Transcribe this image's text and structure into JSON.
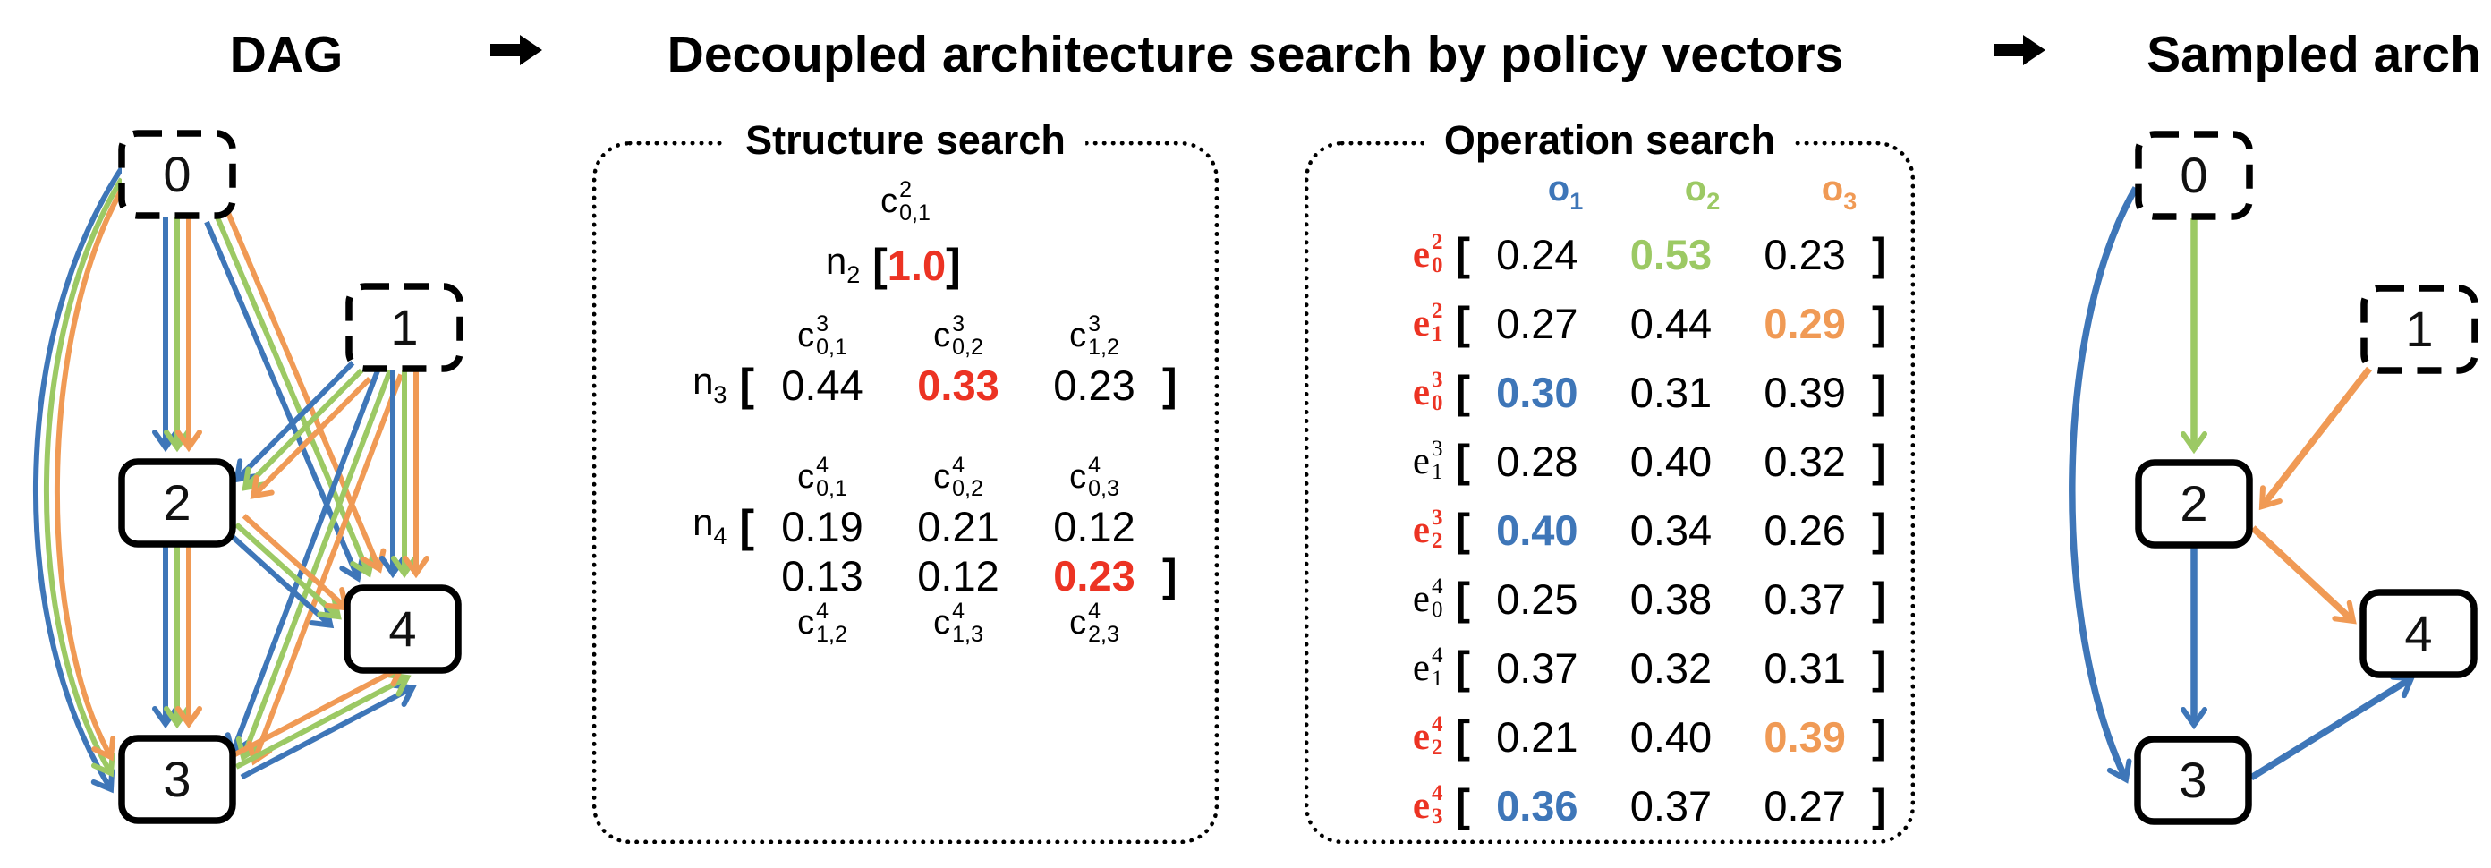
{
  "header": {
    "dag": "DAG",
    "middle": "Decoupled architecture search by policy vectors",
    "sampled": "Sampled arch"
  },
  "palette": {
    "blue": "#3E76B8",
    "green": "#9CC964",
    "orange": "#F09A55",
    "red": "#EC3323",
    "black": "#000000"
  },
  "dag_panel": {
    "nodes": [
      {
        "id": "0",
        "dashed": true
      },
      {
        "id": "1",
        "dashed": true
      },
      {
        "id": "2",
        "dashed": false
      },
      {
        "id": "3",
        "dashed": false
      },
      {
        "id": "4",
        "dashed": false
      }
    ],
    "edges": [
      "0-2",
      "0-3",
      "0-4",
      "1-2",
      "1-3",
      "1-4",
      "2-3",
      "2-4",
      "3-4"
    ],
    "edge_colors": [
      "blue",
      "green",
      "orange"
    ]
  },
  "structure_search": {
    "title": "Structure search",
    "groups": [
      {
        "node": "n",
        "node_sub": "2",
        "labels_top": [
          {
            "base": "c",
            "sup": "2",
            "sub": "0,1"
          }
        ],
        "rows": [
          [
            "1.0"
          ]
        ],
        "highlight": {
          "row": 0,
          "col": 0,
          "color": "red"
        },
        "centered": true
      },
      {
        "node": "n",
        "node_sub": "3",
        "labels_top": [
          {
            "base": "c",
            "sup": "3",
            "sub": "0,1"
          },
          {
            "base": "c",
            "sup": "3",
            "sub": "0,2"
          },
          {
            "base": "c",
            "sup": "3",
            "sub": "1,2"
          }
        ],
        "rows": [
          [
            "0.44",
            "0.33",
            "0.23"
          ]
        ],
        "highlight": {
          "row": 0,
          "col": 1,
          "color": "red"
        },
        "centered": false
      },
      {
        "node": "n",
        "node_sub": "4",
        "labels_top": [
          {
            "base": "c",
            "sup": "4",
            "sub": "0,1"
          },
          {
            "base": "c",
            "sup": "4",
            "sub": "0,2"
          },
          {
            "base": "c",
            "sup": "4",
            "sub": "0,3"
          }
        ],
        "labels_bottom": [
          {
            "base": "c",
            "sup": "4",
            "sub": "1,2"
          },
          {
            "base": "c",
            "sup": "4",
            "sub": "1,3"
          },
          {
            "base": "c",
            "sup": "4",
            "sub": "2,3"
          }
        ],
        "rows": [
          [
            "0.19",
            "0.21",
            "0.12"
          ],
          [
            "0.13",
            "0.12",
            "0.23"
          ]
        ],
        "highlight": {
          "row": 1,
          "col": 2,
          "color": "red"
        },
        "centered": false
      }
    ]
  },
  "operation_search": {
    "title": "Operation search",
    "ops": [
      {
        "base": "o",
        "sub": "1",
        "color": "blue"
      },
      {
        "base": "o",
        "sub": "2",
        "color": "green"
      },
      {
        "base": "o",
        "sub": "3",
        "color": "orange"
      }
    ],
    "rows": [
      {
        "edge": {
          "base": "e",
          "sup": "2",
          "sub": "0"
        },
        "selected": true,
        "values": [
          "0.24",
          "0.53",
          "0.23"
        ],
        "hl_col": 1,
        "hl_color": "green"
      },
      {
        "edge": {
          "base": "e",
          "sup": "2",
          "sub": "1"
        },
        "selected": true,
        "values": [
          "0.27",
          "0.44",
          "0.29"
        ],
        "hl_col": 2,
        "hl_color": "orange"
      },
      {
        "edge": {
          "base": "e",
          "sup": "3",
          "sub": "0"
        },
        "selected": true,
        "values": [
          "0.30",
          "0.31",
          "0.39"
        ],
        "hl_col": 0,
        "hl_color": "blue"
      },
      {
        "edge": {
          "base": "e",
          "sup": "3",
          "sub": "1"
        },
        "selected": false,
        "values": [
          "0.28",
          "0.40",
          "0.32"
        ],
        "hl_col": null,
        "hl_color": null
      },
      {
        "edge": {
          "base": "e",
          "sup": "3",
          "sub": "2"
        },
        "selected": true,
        "values": [
          "0.40",
          "0.34",
          "0.26"
        ],
        "hl_col": 0,
        "hl_color": "blue"
      },
      {
        "edge": {
          "base": "e",
          "sup": "4",
          "sub": "0"
        },
        "selected": false,
        "values": [
          "0.25",
          "0.38",
          "0.37"
        ],
        "hl_col": null,
        "hl_color": null
      },
      {
        "edge": {
          "base": "e",
          "sup": "4",
          "sub": "1"
        },
        "selected": false,
        "values": [
          "0.37",
          "0.32",
          "0.31"
        ],
        "hl_col": null,
        "hl_color": null
      },
      {
        "edge": {
          "base": "e",
          "sup": "4",
          "sub": "2"
        },
        "selected": true,
        "values": [
          "0.21",
          "0.40",
          "0.39"
        ],
        "hl_col": 2,
        "hl_color": "orange"
      },
      {
        "edge": {
          "base": "e",
          "sup": "4",
          "sub": "3"
        },
        "selected": true,
        "values": [
          "0.36",
          "0.37",
          "0.27"
        ],
        "hl_col": 0,
        "hl_color": "blue"
      }
    ]
  },
  "sampled_panel": {
    "nodes": [
      {
        "id": "0",
        "dashed": true
      },
      {
        "id": "1",
        "dashed": true
      },
      {
        "id": "2",
        "dashed": false
      },
      {
        "id": "3",
        "dashed": false
      },
      {
        "id": "4",
        "dashed": false
      }
    ],
    "edges": [
      {
        "from": "0",
        "to": "2",
        "color": "green"
      },
      {
        "from": "1",
        "to": "2",
        "color": "orange"
      },
      {
        "from": "0",
        "to": "3",
        "color": "blue"
      },
      {
        "from": "2",
        "to": "3",
        "color": "blue"
      },
      {
        "from": "2",
        "to": "4",
        "color": "orange"
      },
      {
        "from": "3",
        "to": "4",
        "color": "blue"
      }
    ]
  }
}
